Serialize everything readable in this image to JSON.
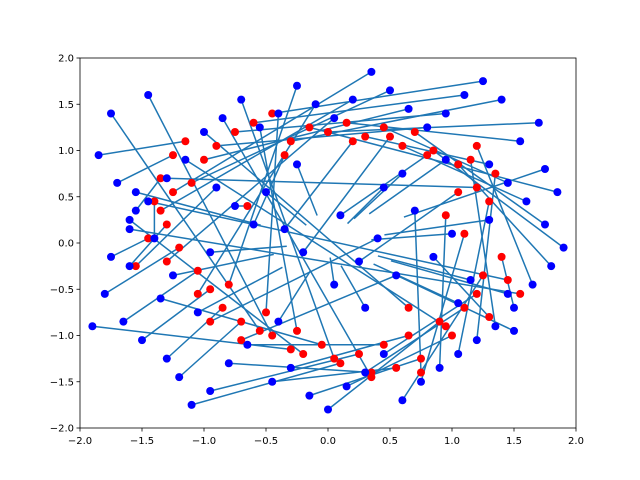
{
  "chart_data": {
    "type": "scatter",
    "title": "",
    "xlabel": "",
    "ylabel": "",
    "xlim": [
      -2.0,
      2.0
    ],
    "ylim": [
      -2.0,
      2.0
    ],
    "grid": false,
    "x_ticks": [
      -2.0,
      -1.5,
      -1.0,
      -0.5,
      0.0,
      0.5,
      1.0,
      1.5,
      2.0
    ],
    "y_ticks": [
      -2.0,
      -1.5,
      -1.0,
      -0.5,
      0.0,
      0.5,
      1.0,
      1.5,
      2.0
    ],
    "x_tick_labels": [
      "−2.0",
      "−1.5",
      "−1.0",
      "−0.5",
      "0.0",
      "0.5",
      "1.0",
      "1.5",
      "2.0"
    ],
    "y_tick_labels": [
      "−2.0",
      "−1.5",
      "−1.0",
      "−0.5",
      "0.0",
      "0.5",
      "1.0",
      "1.5",
      "2.0"
    ],
    "colors": {
      "line": "#1f77b4",
      "red_points": "#ff0000",
      "blue_points": "#0000ff"
    },
    "series": [
      {
        "marker_color": "#ff0000",
        "x": [
          -1.15,
          -1.25,
          -1.35,
          -1.4,
          -1.3,
          -1.2,
          -1.05,
          -0.95,
          -0.85,
          -0.7,
          -0.55,
          -0.45,
          -0.3,
          -0.2,
          -0.05,
          0.1,
          0.25,
          0.35,
          0.45,
          0.55,
          0.65,
          0.75,
          0.9,
          1.0,
          1.1,
          1.2,
          1.25,
          1.1,
          0.95,
          1.3,
          1.35,
          1.15,
          1.4,
          1.2,
          1.05,
          0.85,
          0.7,
          0.6,
          0.45,
          0.3,
          0.15,
          0.0,
          -0.15,
          -0.3,
          -0.45,
          -0.6,
          -0.75,
          -0.9,
          -1.0,
          -1.1,
          -1.25,
          -1.35,
          -1.3,
          -1.05,
          -0.8,
          -0.5,
          -0.25,
          0.05,
          0.35,
          0.65,
          0.95,
          1.2,
          1.45,
          1.55,
          -1.45,
          -1.55,
          -0.65,
          -0.35,
          0.2,
          0.5,
          0.8,
          1.05,
          -0.95,
          -0.7,
          0.75,
          1.3
        ],
        "y": [
          1.1,
          0.95,
          0.7,
          0.45,
          0.2,
          -0.05,
          -0.3,
          -0.5,
          -0.7,
          -0.85,
          -0.95,
          -1.0,
          -1.15,
          -1.2,
          -1.1,
          -1.3,
          -1.2,
          -1.4,
          -1.1,
          -1.35,
          -1.0,
          -1.25,
          -0.85,
          -1.0,
          -0.7,
          -0.55,
          -0.35,
          0.1,
          0.3,
          0.45,
          0.75,
          0.9,
          -0.15,
          1.05,
          0.85,
          1.0,
          1.2,
          1.05,
          1.25,
          1.15,
          1.3,
          1.2,
          1.25,
          1.1,
          1.4,
          1.3,
          1.2,
          1.05,
          0.9,
          0.65,
          0.55,
          0.35,
          -0.2,
          -0.55,
          -0.45,
          -0.75,
          -0.95,
          -1.25,
          -1.45,
          -0.7,
          -0.9,
          0.6,
          -0.4,
          -0.55,
          0.05,
          -0.25,
          0.4,
          0.95,
          1.1,
          1.15,
          0.95,
          0.55,
          -0.85,
          -1.05,
          -1.4,
          -0.8
        ]
      },
      {
        "marker_color": "#0000ff",
        "x": [
          -1.85,
          -1.7,
          -1.55,
          -1.4,
          -1.6,
          -1.8,
          -1.65,
          -1.5,
          -1.3,
          -1.2,
          -1.75,
          -1.45,
          -1.9,
          -1.6,
          -1.35,
          -1.1,
          -0.95,
          -0.8,
          -0.65,
          -0.45,
          -0.3,
          -0.15,
          0.0,
          0.15,
          0.3,
          0.45,
          0.6,
          0.75,
          0.9,
          1.05,
          1.2,
          1.35,
          1.5,
          1.65,
          1.8,
          1.9,
          1.75,
          1.6,
          1.45,
          1.3,
          1.55,
          1.7,
          1.85,
          1.4,
          1.25,
          1.1,
          0.95,
          0.8,
          0.65,
          0.5,
          0.35,
          0.2,
          0.05,
          -0.1,
          -0.25,
          -0.4,
          -0.55,
          -0.7,
          -0.85,
          -1.0,
          -1.15,
          -1.3,
          -1.45,
          -1.6,
          -1.75,
          -0.9,
          -0.75,
          -0.6,
          -0.35,
          -0.2,
          0.1,
          0.25,
          0.4,
          0.55,
          0.7,
          0.85,
          1.0,
          1.15,
          1.3,
          1.45,
          -1.25,
          -1.05,
          -0.5,
          0.05,
          0.6,
          1.05,
          1.5,
          -0.4,
          0.45,
          0.95,
          -0.95,
          1.75,
          -1.55,
          0.3,
          -0.25
        ],
        "y": [
          0.95,
          0.65,
          0.35,
          0.05,
          -0.25,
          -0.55,
          -0.85,
          -1.05,
          -1.25,
          -1.45,
          1.4,
          1.6,
          -0.9,
          0.25,
          -0.6,
          -1.75,
          -1.6,
          -1.3,
          -1.1,
          -1.5,
          -1.35,
          -1.65,
          -1.8,
          -1.55,
          -1.4,
          -1.2,
          -1.7,
          -1.5,
          -1.35,
          -1.2,
          -1.05,
          -0.9,
          -0.7,
          -0.45,
          -0.25,
          -0.05,
          0.2,
          0.45,
          0.65,
          0.85,
          1.1,
          1.3,
          0.55,
          1.55,
          1.75,
          1.6,
          1.4,
          1.25,
          1.45,
          1.65,
          1.85,
          1.55,
          1.35,
          1.5,
          1.7,
          1.4,
          1.25,
          1.55,
          1.35,
          1.2,
          0.9,
          0.7,
          0.45,
          0.15,
          -0.15,
          0.6,
          0.4,
          0.2,
          0.15,
          -0.1,
          0.3,
          -0.2,
          0.05,
          -0.35,
          0.35,
          -0.15,
          0.1,
          -0.4,
          0.25,
          -0.55,
          -0.35,
          -0.75,
          0.55,
          -0.45,
          0.75,
          -0.65,
          -0.95,
          -0.85,
          0.6,
          0.9,
          -0.1,
          0.8,
          0.55,
          -0.7,
          0.85
        ]
      }
    ]
  }
}
